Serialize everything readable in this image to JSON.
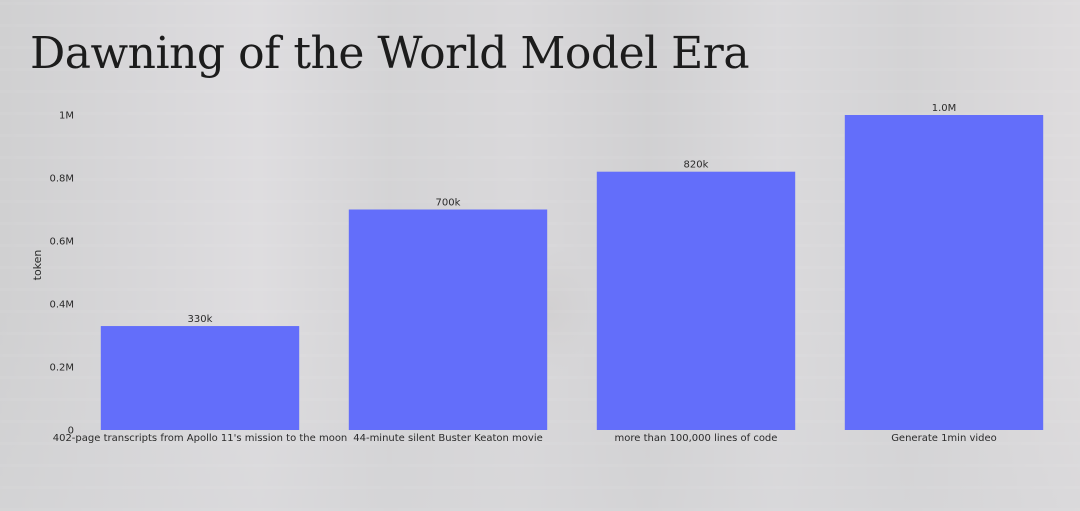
{
  "title": "Dawning of the World Model Era",
  "chart_data": {
    "type": "bar",
    "categories": [
      "402-page transcripts from Apollo 11's mission to the moon",
      "44-minute silent Buster Keaton movie",
      "more than 100,000 lines of code",
      "Generate 1min video"
    ],
    "values": [
      330000,
      700000,
      820000,
      1000000
    ],
    "data_labels": [
      "330k",
      "700k",
      "820k",
      "1.0M"
    ],
    "ylabel": "token",
    "xlabel": "",
    "ylim": [
      0,
      1000000
    ],
    "yticks": [
      0,
      200000,
      400000,
      600000,
      800000,
      1000000
    ],
    "ytick_labels": [
      "0",
      "0.2M",
      "0.4M",
      "0.6M",
      "0.8M",
      "1M"
    ],
    "bar_color": "#636efa",
    "grid": false,
    "legend": "none"
  }
}
